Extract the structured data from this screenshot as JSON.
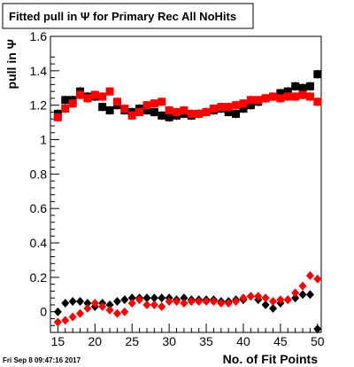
{
  "title": "Fitted pull in Ψ  for Primary Rec All NoHits",
  "timestamp": "Fri Sep  8 09:47:16 2017",
  "chart_data": {
    "type": "scatter",
    "xlabel": "No. of Fit Points",
    "ylabel": "pull in Ψ",
    "xlim": [
      14,
      50.5
    ],
    "ylim": [
      -0.12,
      1.6
    ],
    "x_ticks": [
      15,
      20,
      25,
      30,
      35,
      40,
      45,
      50
    ],
    "x_tick_labels": [
      "15",
      "20",
      "25",
      "30",
      "35",
      "40",
      "45",
      "50"
    ],
    "y_ticks": [
      0,
      0.2,
      0.4,
      0.6,
      0.8,
      1.0,
      1.2,
      1.4,
      1.6
    ],
    "y_tick_labels": [
      "0",
      "0.2",
      "0.4",
      "0.6",
      "0.8",
      "1",
      "1.2",
      "1.4",
      "1.6"
    ],
    "legend": "none",
    "grid": false,
    "colors": {
      "black_series": "#000000",
      "red_series": "#ff0000"
    },
    "series": [
      {
        "marker": "square",
        "color": "#000000",
        "x": [
          15,
          16,
          17,
          18,
          19,
          20,
          21,
          22,
          23,
          24,
          25,
          26,
          27,
          28,
          29,
          30,
          31,
          32,
          33,
          34,
          35,
          36,
          37,
          38,
          39,
          40,
          41,
          42,
          43,
          44,
          45,
          46,
          47,
          48,
          49,
          50
        ],
        "y": [
          1.15,
          1.23,
          1.23,
          1.28,
          1.25,
          1.25,
          1.19,
          1.17,
          1.2,
          1.17,
          1.16,
          1.18,
          1.17,
          1.16,
          1.14,
          1.13,
          1.14,
          1.15,
          1.14,
          1.15,
          1.16,
          1.17,
          1.18,
          1.16,
          1.15,
          1.18,
          1.2,
          1.22,
          1.24,
          1.25,
          1.27,
          1.28,
          1.31,
          1.3,
          1.31,
          1.38
        ]
      },
      {
        "marker": "square",
        "color": "#ff0000",
        "x": [
          15,
          16,
          17,
          18,
          19,
          20,
          21,
          22,
          23,
          24,
          25,
          26,
          27,
          28,
          29,
          30,
          31,
          32,
          33,
          34,
          35,
          36,
          37,
          38,
          39,
          40,
          41,
          42,
          43,
          44,
          45,
          46,
          47,
          48,
          49,
          50
        ],
        "y": [
          1.13,
          1.18,
          1.21,
          1.26,
          1.24,
          1.26,
          1.25,
          1.28,
          1.22,
          1.18,
          1.14,
          1.16,
          1.2,
          1.21,
          1.22,
          1.17,
          1.16,
          1.17,
          1.15,
          1.15,
          1.16,
          1.18,
          1.19,
          1.19,
          1.2,
          1.21,
          1.23,
          1.23,
          1.24,
          1.25,
          1.24,
          1.25,
          1.25,
          1.26,
          1.25,
          1.22
        ]
      },
      {
        "marker": "diamond",
        "color": "#000000",
        "x": [
          15,
          16,
          17,
          18,
          19,
          20,
          21,
          22,
          23,
          24,
          25,
          26,
          27,
          28,
          29,
          30,
          31,
          32,
          33,
          34,
          35,
          36,
          37,
          38,
          39,
          40,
          41,
          42,
          43,
          44,
          45,
          46,
          47,
          48,
          49,
          50
        ],
        "y": [
          0.0,
          0.05,
          0.06,
          0.06,
          0.05,
          0.03,
          0.05,
          0.04,
          0.06,
          0.07,
          0.08,
          0.08,
          0.08,
          0.08,
          0.08,
          0.08,
          0.07,
          0.08,
          0.07,
          0.07,
          0.07,
          0.07,
          0.06,
          0.06,
          0.07,
          0.07,
          0.09,
          0.07,
          0.04,
          0.02,
          0.05,
          0.07,
          0.08,
          0.1,
          0.1,
          -0.1
        ]
      },
      {
        "marker": "diamond",
        "color": "#ff0000",
        "x": [
          15,
          16,
          17,
          18,
          19,
          20,
          21,
          22,
          23,
          24,
          25,
          26,
          27,
          28,
          29,
          30,
          31,
          32,
          33,
          34,
          35,
          36,
          37,
          38,
          39,
          40,
          41,
          42,
          43,
          44,
          45,
          46,
          47,
          48,
          49,
          50
        ],
        "y": [
          -0.06,
          -0.05,
          -0.03,
          -0.01,
          0.02,
          0.05,
          0.03,
          0.01,
          -0.01,
          0.0,
          0.05,
          0.07,
          0.04,
          0.04,
          0.03,
          0.06,
          0.06,
          0.05,
          0.06,
          0.06,
          0.06,
          0.06,
          0.05,
          0.05,
          0.06,
          0.08,
          0.09,
          0.09,
          0.08,
          0.06,
          0.07,
          0.07,
          0.11,
          0.15,
          0.21,
          0.19
        ]
      }
    ]
  }
}
